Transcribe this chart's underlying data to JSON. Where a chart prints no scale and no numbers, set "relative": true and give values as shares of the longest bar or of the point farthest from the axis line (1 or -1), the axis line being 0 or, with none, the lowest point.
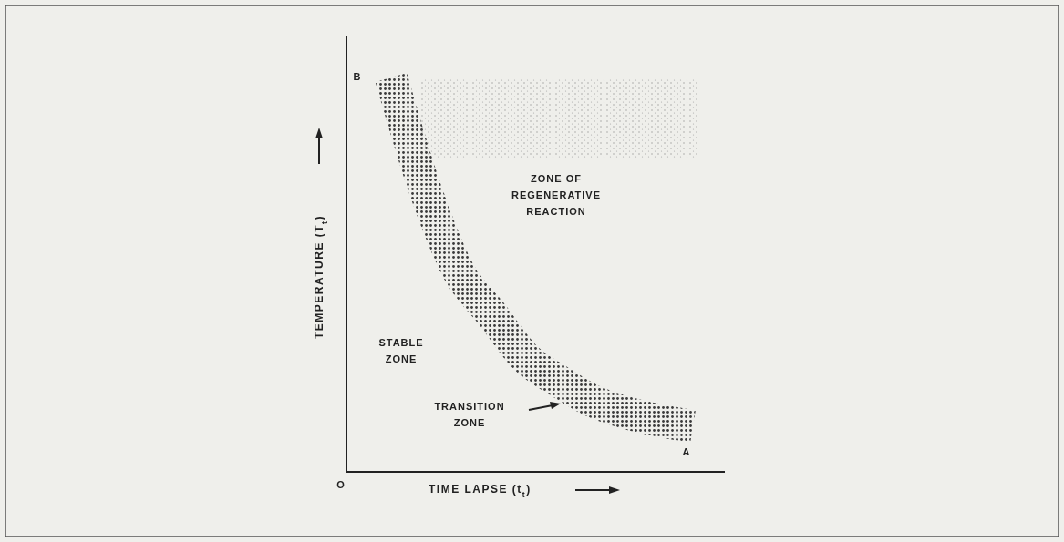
{
  "chart_data": {
    "type": "line",
    "relative": true,
    "xlabel": "TIME LAPSE (t$_{t}$)",
    "ylabel": "TEMPERATURE (T$_{t}$)",
    "categories": [
      null,
      null,
      null,
      null,
      null,
      null,
      null,
      null,
      null,
      null
    ],
    "series": [
      {
        "color": "#3a3a3a",
        "values": [
          1,
          0.72,
          0.51,
          0.4,
          0.29,
          0.23,
          0.18,
          0.15,
          0.13,
          0.115
        ]
      }
    ],
    "annotations": [
      "B",
      "A",
      "ZONE OF\nREGENERATIVE\nREACTION",
      "STABLE\nZONE",
      "TRANSITION\nZONE",
      "O"
    ],
    "marker": "none",
    "line_style": "solid"
  }
}
